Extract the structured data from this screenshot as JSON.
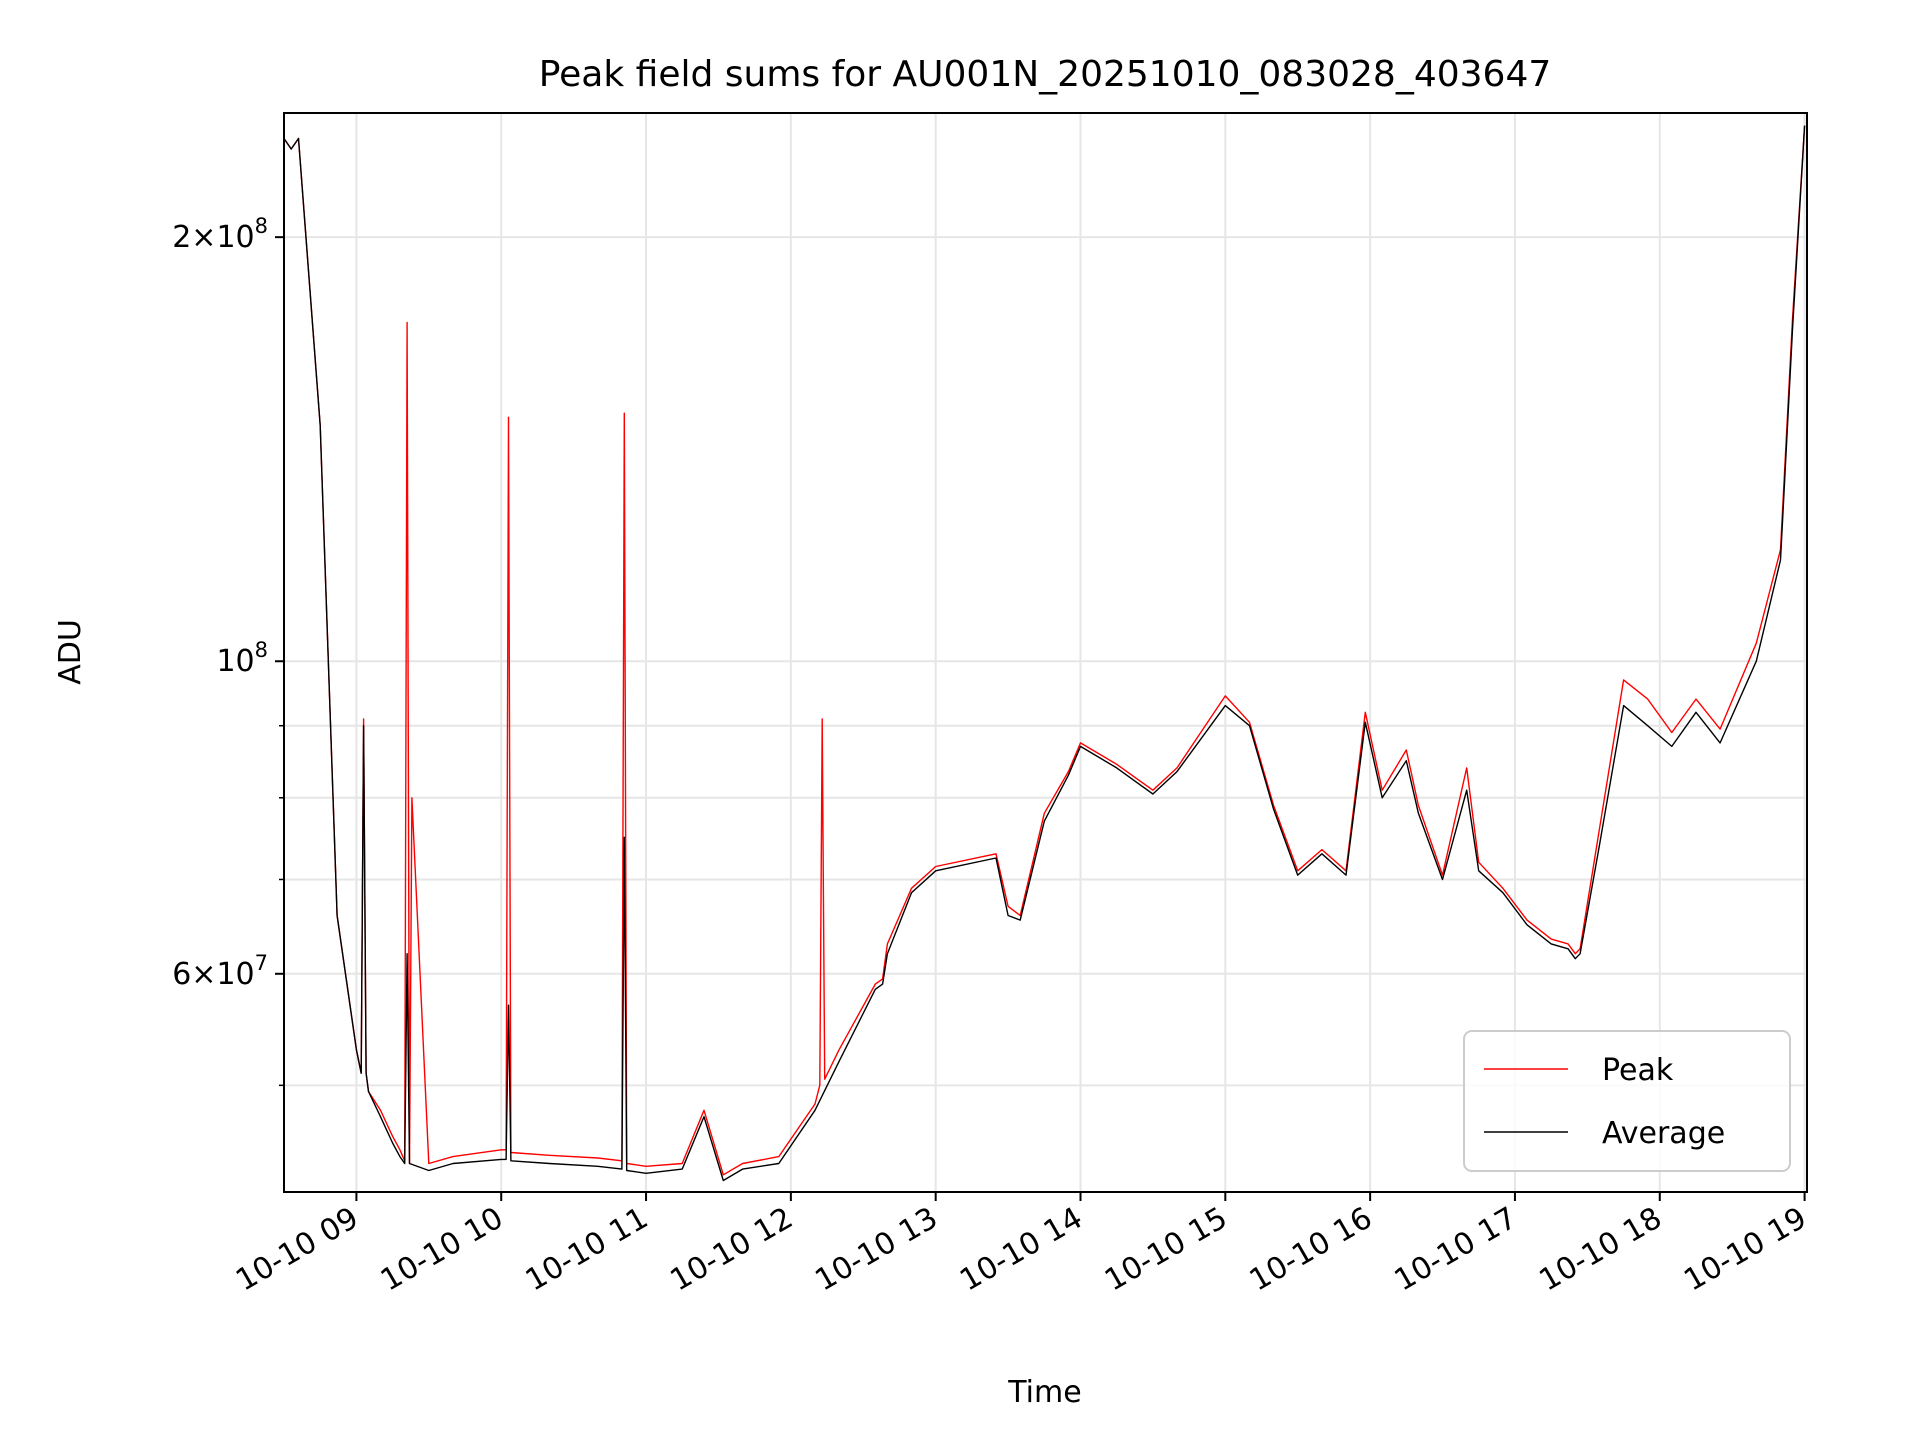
{
  "chart_data": {
    "type": "line",
    "title": "Peak field sums for AU001N_20251010_083028_403647",
    "xlabel": "Time",
    "ylabel": "ADU",
    "yscale": "log",
    "ylim": [
      42000000,
      245000000
    ],
    "xlim": [
      "2025-10-10 08:30",
      "2025-10-10 19:01"
    ],
    "grid": true,
    "legend_position": "lower-right",
    "x_ticks": [
      {
        "t": "2025-10-10 09:00",
        "label": "10-10 09"
      },
      {
        "t": "2025-10-10 10:00",
        "label": "10-10 10"
      },
      {
        "t": "2025-10-10 11:00",
        "label": "10-10 11"
      },
      {
        "t": "2025-10-10 12:00",
        "label": "10-10 12"
      },
      {
        "t": "2025-10-10 13:00",
        "label": "10-10 13"
      },
      {
        "t": "2025-10-10 14:00",
        "label": "10-10 14"
      },
      {
        "t": "2025-10-10 15:00",
        "label": "10-10 15"
      },
      {
        "t": "2025-10-10 16:00",
        "label": "10-10 16"
      },
      {
        "t": "2025-10-10 17:00",
        "label": "10-10 17"
      },
      {
        "t": "2025-10-10 18:00",
        "label": "10-10 18"
      },
      {
        "t": "2025-10-10 19:00",
        "label": "10-10 19"
      }
    ],
    "y_major_ticks": [
      {
        "value": 60000000,
        "base": "6",
        "exp": "7"
      },
      {
        "value": 100000000,
        "base": "",
        "exp": "8"
      },
      {
        "value": 200000000,
        "base": "2",
        "exp": "8"
      }
    ],
    "y_minor_ticks": [
      50000000,
      70000000,
      80000000,
      90000000
    ],
    "series": [
      {
        "name": "Peak",
        "color": "#ff0000",
        "x": [
          "2025-10-10 08:30",
          "2025-10-10 08:33",
          "2025-10-10 08:36",
          "2025-10-10 08:45",
          "2025-10-10 08:52",
          "2025-10-10 09:00",
          "2025-10-10 09:02",
          "2025-10-10 09:03",
          "2025-10-10 09:04",
          "2025-10-10 09:05",
          "2025-10-10 09:10",
          "2025-10-10 09:15",
          "2025-10-10 09:18",
          "2025-10-10 09:20",
          "2025-10-10 09:21",
          "2025-10-10 09:22",
          "2025-10-10 09:23",
          "2025-10-10 09:30",
          "2025-10-10 09:40",
          "2025-10-10 10:00",
          "2025-10-10 10:02",
          "2025-10-10 10:03",
          "2025-10-10 10:04",
          "2025-10-10 10:20",
          "2025-10-10 10:40",
          "2025-10-10 10:50",
          "2025-10-10 10:51",
          "2025-10-10 10:52",
          "2025-10-10 11:00",
          "2025-10-10 11:15",
          "2025-10-10 11:24",
          "2025-10-10 11:32",
          "2025-10-10 11:40",
          "2025-10-10 11:55",
          "2025-10-10 12:10",
          "2025-10-10 12:12",
          "2025-10-10 12:13",
          "2025-10-10 12:14",
          "2025-10-10 12:20",
          "2025-10-10 12:35",
          "2025-10-10 12:38",
          "2025-10-10 12:40",
          "2025-10-10 12:50",
          "2025-10-10 13:00",
          "2025-10-10 13:25",
          "2025-10-10 13:30",
          "2025-10-10 13:35",
          "2025-10-10 13:45",
          "2025-10-10 13:55",
          "2025-10-10 14:00",
          "2025-10-10 14:15",
          "2025-10-10 14:30",
          "2025-10-10 14:40",
          "2025-10-10 15:00",
          "2025-10-10 15:10",
          "2025-10-10 15:20",
          "2025-10-10 15:30",
          "2025-10-10 15:40",
          "2025-10-10 15:50",
          "2025-10-10 15:58",
          "2025-10-10 16:05",
          "2025-10-10 16:15",
          "2025-10-10 16:20",
          "2025-10-10 16:30",
          "2025-10-10 16:40",
          "2025-10-10 16:45",
          "2025-10-10 16:55",
          "2025-10-10 17:05",
          "2025-10-10 17:15",
          "2025-10-10 17:22",
          "2025-10-10 17:25",
          "2025-10-10 17:27",
          "2025-10-10 17:35",
          "2025-10-10 17:45",
          "2025-10-10 17:55",
          "2025-10-10 18:05",
          "2025-10-10 18:15",
          "2025-10-10 18:25",
          "2025-10-10 18:40",
          "2025-10-10 18:50",
          "2025-10-10 18:55",
          "2025-10-10 19:00"
        ],
        "y": [
          235000000,
          231000000,
          235000000,
          147000000,
          66000000,
          53000000,
          51000000,
          91000000,
          51000000,
          49500000,
          48000000,
          46000000,
          45000000,
          44200000,
          174000000,
          44000000,
          80000000,
          44000000,
          44500000,
          45000000,
          45000000,
          149000000,
          44800000,
          44600000,
          44400000,
          44200000,
          150000000,
          44000000,
          43800000,
          44000000,
          48000000,
          43200000,
          44000000,
          44500000,
          48500000,
          50000000,
          91000000,
          50500000,
          53000000,
          59000000,
          59500000,
          63000000,
          69000000,
          71500000,
          73000000,
          67000000,
          66000000,
          78000000,
          83500000,
          87500000,
          84500000,
          81000000,
          84000000,
          94500000,
          90500000,
          79000000,
          71000000,
          73500000,
          71000000,
          92000000,
          81000000,
          86500000,
          79000000,
          70500000,
          84000000,
          72000000,
          69000000,
          65500000,
          63500000,
          63000000,
          62000000,
          62500000,
          76000000,
          97000000,
          94000000,
          89000000,
          94000000,
          89500000,
          103000000,
          120000000,
          175000000,
          240000000
        ]
      },
      {
        "name": "Average",
        "color": "#000000",
        "x": [
          "2025-10-10 08:30",
          "2025-10-10 08:33",
          "2025-10-10 08:36",
          "2025-10-10 08:45",
          "2025-10-10 08:52",
          "2025-10-10 09:00",
          "2025-10-10 09:02",
          "2025-10-10 09:03",
          "2025-10-10 09:04",
          "2025-10-10 09:05",
          "2025-10-10 09:10",
          "2025-10-10 09:15",
          "2025-10-10 09:18",
          "2025-10-10 09:20",
          "2025-10-10 09:21",
          "2025-10-10 09:22",
          "2025-10-10 09:30",
          "2025-10-10 09:40",
          "2025-10-10 10:00",
          "2025-10-10 10:02",
          "2025-10-10 10:03",
          "2025-10-10 10:04",
          "2025-10-10 10:20",
          "2025-10-10 10:40",
          "2025-10-10 10:50",
          "2025-10-10 10:51",
          "2025-10-10 10:52",
          "2025-10-10 11:00",
          "2025-10-10 11:15",
          "2025-10-10 11:24",
          "2025-10-10 11:32",
          "2025-10-10 11:40",
          "2025-10-10 11:55",
          "2025-10-10 12:10",
          "2025-10-10 12:20",
          "2025-10-10 12:35",
          "2025-10-10 12:38",
          "2025-10-10 12:40",
          "2025-10-10 12:50",
          "2025-10-10 13:00",
          "2025-10-10 13:25",
          "2025-10-10 13:30",
          "2025-10-10 13:35",
          "2025-10-10 13:45",
          "2025-10-10 13:55",
          "2025-10-10 14:00",
          "2025-10-10 14:15",
          "2025-10-10 14:30",
          "2025-10-10 14:40",
          "2025-10-10 15:00",
          "2025-10-10 15:10",
          "2025-10-10 15:20",
          "2025-10-10 15:30",
          "2025-10-10 15:40",
          "2025-10-10 15:50",
          "2025-10-10 15:58",
          "2025-10-10 16:05",
          "2025-10-10 16:15",
          "2025-10-10 16:20",
          "2025-10-10 16:30",
          "2025-10-10 16:40",
          "2025-10-10 16:45",
          "2025-10-10 16:55",
          "2025-10-10 17:05",
          "2025-10-10 17:15",
          "2025-10-10 17:22",
          "2025-10-10 17:25",
          "2025-10-10 17:27",
          "2025-10-10 17:35",
          "2025-10-10 17:45",
          "2025-10-10 17:55",
          "2025-10-10 18:05",
          "2025-10-10 18:15",
          "2025-10-10 18:25",
          "2025-10-10 18:40",
          "2025-10-10 18:50",
          "2025-10-10 18:55",
          "2025-10-10 19:00"
        ],
        "y": [
          235000000,
          231000000,
          235000000,
          147000000,
          66000000,
          53000000,
          51000000,
          90000000,
          51000000,
          49500000,
          47500000,
          45500000,
          44500000,
          44000000,
          62000000,
          44000000,
          43500000,
          44000000,
          44300000,
          44300000,
          57000000,
          44200000,
          44000000,
          43800000,
          43600000,
          75000000,
          43500000,
          43300000,
          43600000,
          47500000,
          42800000,
          43600000,
          44000000,
          48000000,
          52000000,
          58500000,
          59000000,
          62000000,
          68500000,
          71000000,
          72500000,
          66000000,
          65500000,
          77000000,
          83000000,
          87000000,
          84000000,
          80500000,
          83500000,
          93000000,
          90000000,
          78500000,
          70500000,
          73000000,
          70500000,
          90500000,
          80000000,
          85000000,
          78000000,
          70000000,
          81000000,
          71000000,
          68500000,
          65000000,
          63000000,
          62500000,
          61500000,
          62000000,
          74000000,
          93000000,
          90000000,
          87000000,
          92000000,
          87500000,
          100000000,
          118000000,
          172000000,
          240000000
        ]
      }
    ]
  }
}
